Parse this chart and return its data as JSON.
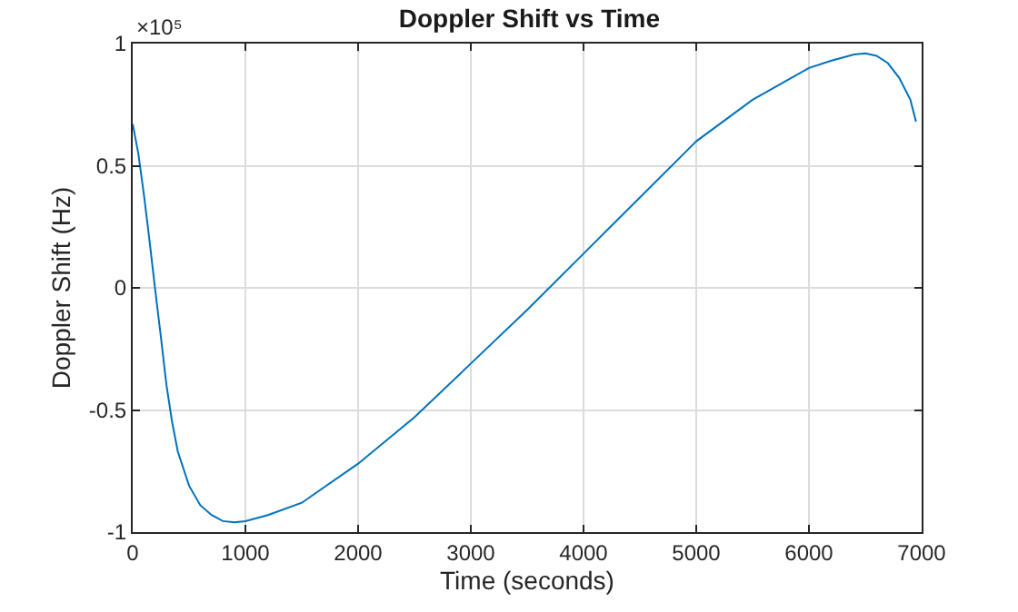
{
  "chart_data": {
    "type": "line",
    "title": "Doppler Shift vs Time",
    "xlabel": "Time (seconds)",
    "ylabel": "Doppler Shift (Hz)",
    "annotations": [
      "×10⁵"
    ],
    "x": [
      0,
      50,
      100,
      150,
      200,
      250,
      300,
      350,
      400,
      500,
      600,
      700,
      800,
      900,
      1000,
      1200,
      1500,
      2000,
      2500,
      3000,
      3500,
      4000,
      4500,
      5000,
      5500,
      6000,
      6200,
      6400,
      6500,
      6600,
      6700,
      6800,
      6900,
      6950
    ],
    "series": [
      {
        "color": "#0072bd",
        "values": [
          0.67,
          0.55,
          0.38,
          0.19,
          -0.01,
          -0.2,
          -0.4,
          -0.55,
          -0.67,
          -0.81,
          -0.89,
          -0.93,
          -0.955,
          -0.96,
          -0.955,
          -0.93,
          -0.88,
          -0.72,
          -0.53,
          -0.31,
          -0.09,
          0.14,
          0.37,
          0.6,
          0.77,
          0.9,
          0.93,
          0.955,
          0.96,
          0.95,
          0.92,
          0.86,
          0.77,
          0.68
        ]
      }
    ],
    "xlim": [
      0,
      7000
    ],
    "xticks": [
      0,
      1000,
      2000,
      3000,
      4000,
      5000,
      6000,
      7000
    ],
    "ylim": [
      -1,
      1
    ],
    "yticks": [
      -1,
      -0.5,
      0,
      0.5,
      1
    ],
    "grid": true,
    "marker": "none",
    "line_style": "solid"
  }
}
